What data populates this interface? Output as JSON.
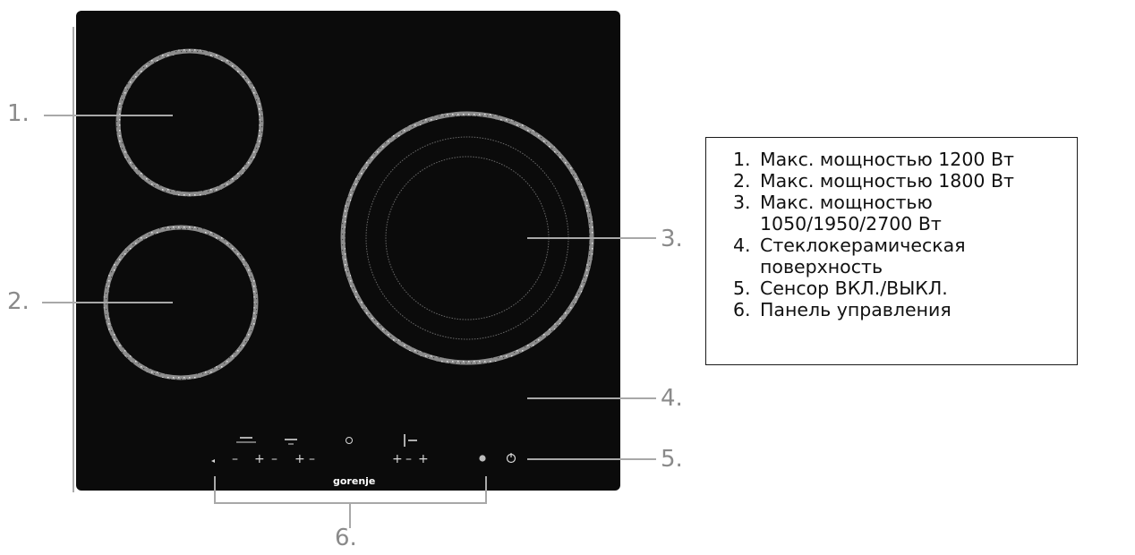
{
  "callouts": {
    "c1": "1.",
    "c2": "2.",
    "c3": "3.",
    "c4": "4.",
    "c5": "5.",
    "c6": "6."
  },
  "brand": "gorenje",
  "control_panel": {
    "plus": "+",
    "minus": "–"
  },
  "legend": {
    "items": [
      {
        "num": "1.",
        "text": "Макс. мощностью 1200 Вт"
      },
      {
        "num": "2.",
        "text": "Макс. мощностью 1800 Вт"
      },
      {
        "num": "3.",
        "text": "Макс. мощностью 1050/1950/2700 Вт"
      },
      {
        "num": "4.",
        "text": "Стеклокерамическая поверхность"
      },
      {
        "num": "5.",
        "text": "Сенсор ВКЛ./ВЫКЛ."
      },
      {
        "num": "6.",
        "text": "Панель управления"
      }
    ]
  },
  "colors": {
    "hob_glass": "#0b0b0b",
    "burner_ring": "#9a9a9a",
    "leader_line": "#a8a8a8",
    "callout_text": "#8a8a8a"
  }
}
